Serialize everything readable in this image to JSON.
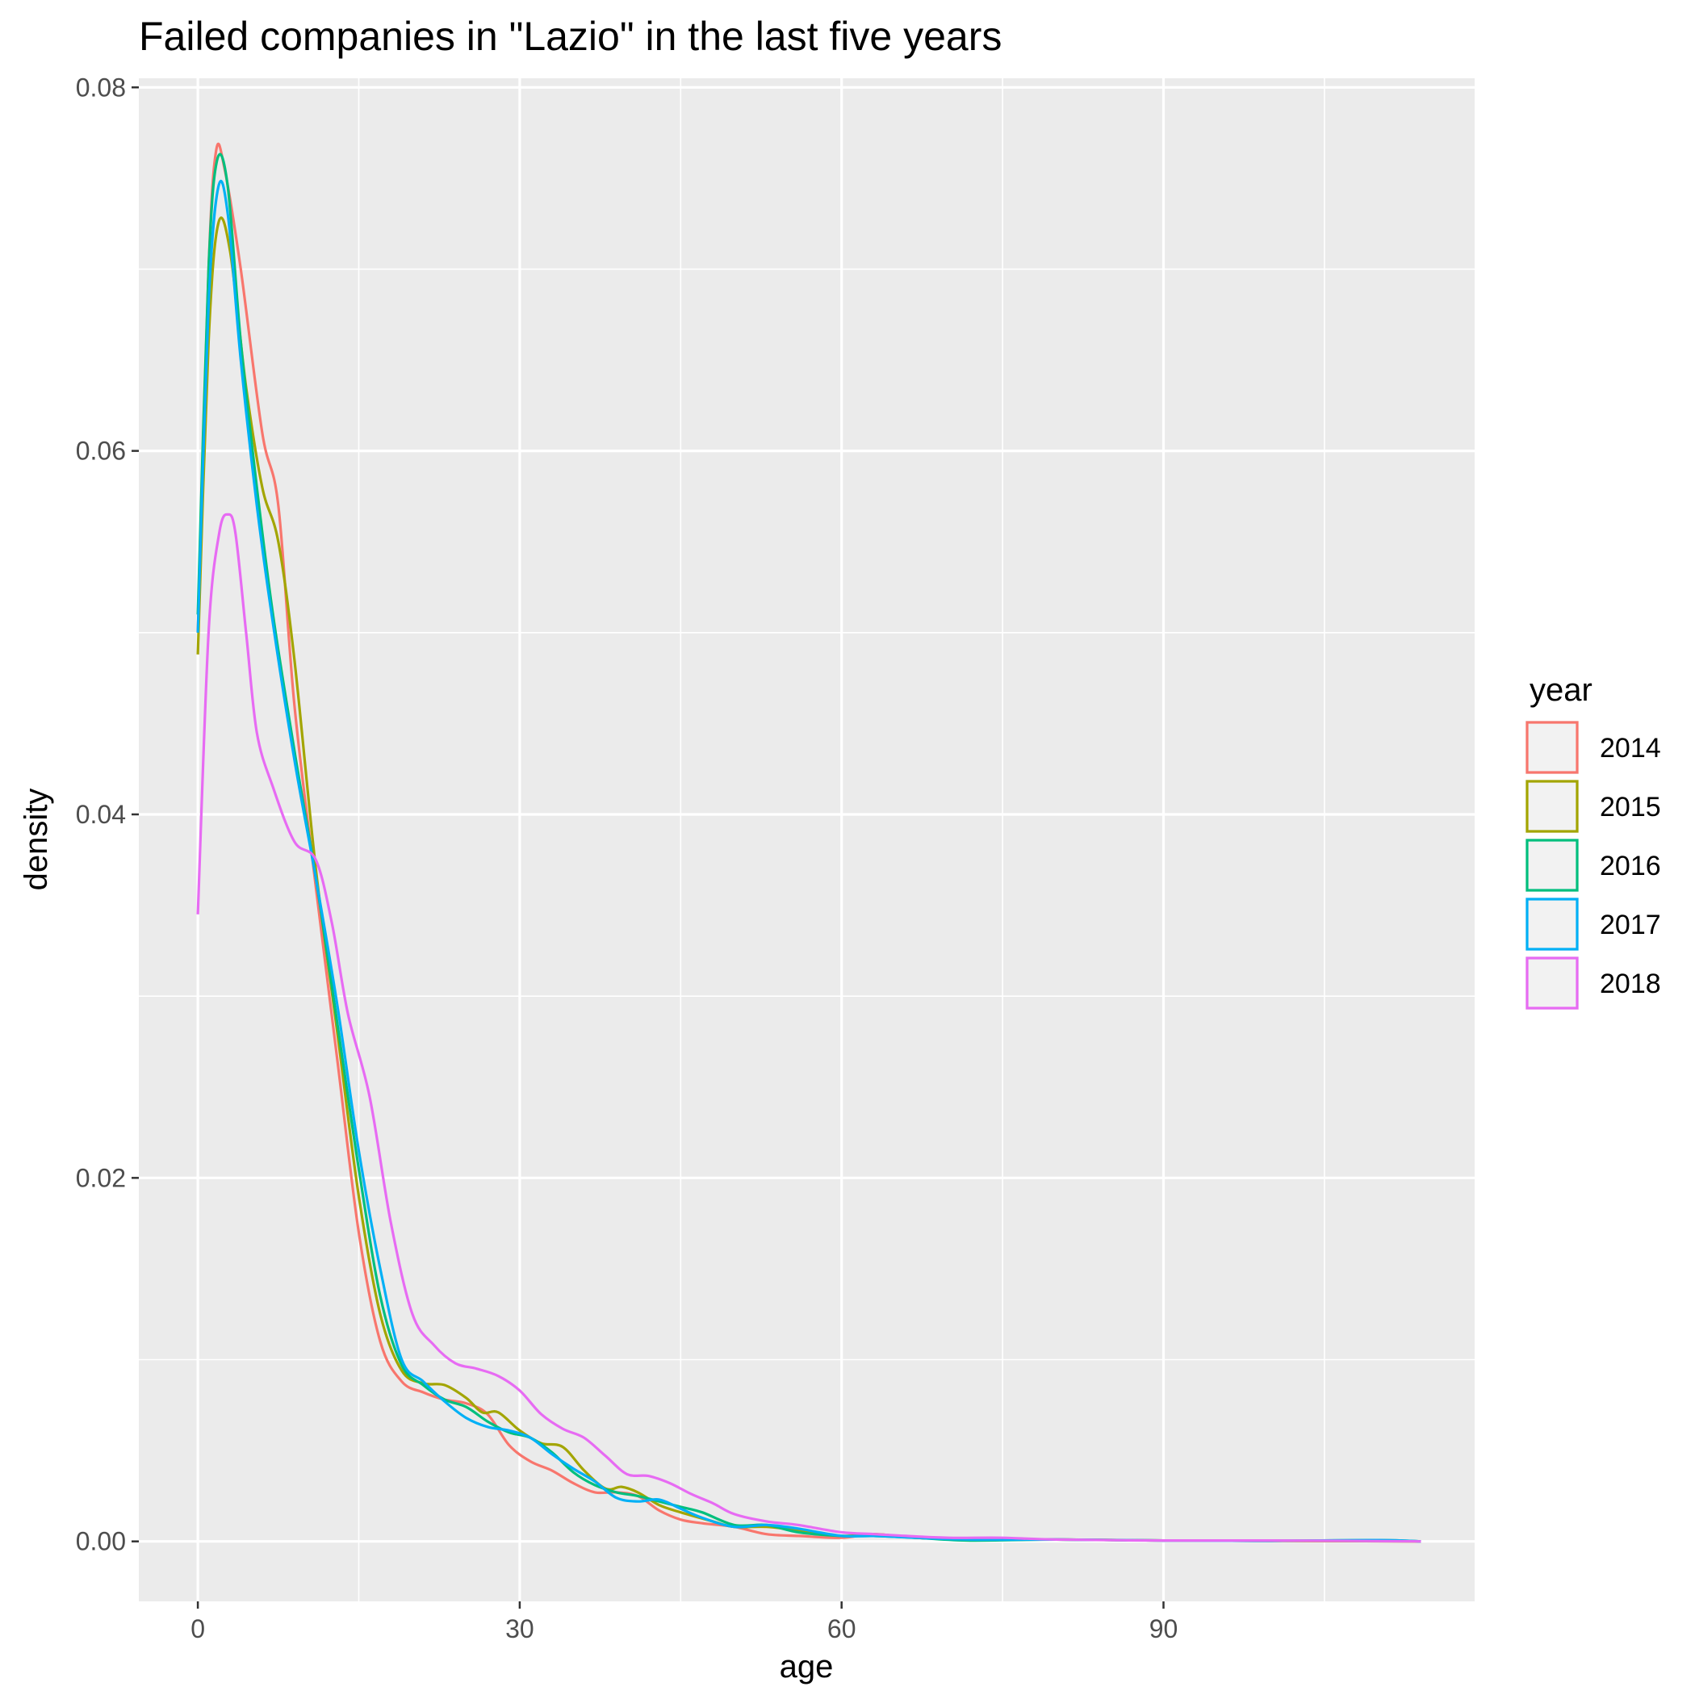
{
  "chart_data": {
    "type": "line",
    "title": "Failed companies in \"Lazio\" in the last five years",
    "xlabel": "age",
    "ylabel": "density",
    "xlim": [
      -5.5,
      119
    ],
    "ylim": [
      -0.0033,
      0.0805
    ],
    "x_ticks": [
      0,
      30,
      60,
      90
    ],
    "x_tick_labels": [
      "0",
      "30",
      "60",
      "90"
    ],
    "x_minor_ticks": [
      15,
      45,
      75,
      105
    ],
    "y_ticks": [
      0,
      0.02,
      0.04,
      0.06,
      0.08
    ],
    "y_tick_labels": [
      "0.00",
      "0.02",
      "0.04",
      "0.06",
      "0.08"
    ],
    "y_minor_ticks": [
      0.01,
      0.03,
      0.05,
      0.07
    ],
    "grid": true,
    "background": "#ebebeb",
    "legend": {
      "title": "year",
      "position": "right"
    },
    "series": [
      {
        "name": "2014",
        "color": "#f8766d",
        "points": [
          [
            0,
            0.05
          ],
          [
            1,
            0.07
          ],
          [
            1.7,
            0.0765
          ],
          [
            2.5,
            0.0755
          ],
          [
            4,
            0.07
          ],
          [
            6,
            0.061
          ],
          [
            7.5,
            0.057
          ],
          [
            9,
            0.046
          ],
          [
            11,
            0.036
          ],
          [
            13,
            0.0265
          ],
          [
            15,
            0.017
          ],
          [
            17,
            0.011
          ],
          [
            19,
            0.0088
          ],
          [
            21,
            0.0082
          ],
          [
            23,
            0.0078
          ],
          [
            25,
            0.0076
          ],
          [
            27,
            0.007
          ],
          [
            29,
            0.0053
          ],
          [
            31,
            0.0044
          ],
          [
            33,
            0.0039
          ],
          [
            35,
            0.0032
          ],
          [
            37,
            0.0027
          ],
          [
            39,
            0.0027
          ],
          [
            41,
            0.0025
          ],
          [
            43,
            0.0017
          ],
          [
            45,
            0.0012
          ],
          [
            47,
            0.001
          ],
          [
            50,
            0.0008
          ],
          [
            53,
            0.0004
          ],
          [
            56,
            0.0003
          ],
          [
            60,
            0.0002
          ],
          [
            63,
            0.0004
          ],
          [
            67,
            0.0002
          ],
          [
            72,
            0.0001
          ],
          [
            80,
            0.0001
          ],
          [
            90,
            5e-05
          ],
          [
            100,
            3e-05
          ],
          [
            114,
            0.0
          ]
        ]
      },
      {
        "name": "2015",
        "color": "#a3a500",
        "points": [
          [
            0,
            0.0488
          ],
          [
            1,
            0.066
          ],
          [
            1.9,
            0.0725
          ],
          [
            3,
            0.071
          ],
          [
            4.5,
            0.0635
          ],
          [
            6,
            0.058
          ],
          [
            7.5,
            0.055
          ],
          [
            9,
            0.0485
          ],
          [
            11,
            0.037
          ],
          [
            13,
            0.028
          ],
          [
            15,
            0.019
          ],
          [
            17,
            0.0125
          ],
          [
            19,
            0.0094
          ],
          [
            21,
            0.0087
          ],
          [
            23,
            0.0086
          ],
          [
            25,
            0.0079
          ],
          [
            26.5,
            0.0071
          ],
          [
            28,
            0.0071
          ],
          [
            30,
            0.0061
          ],
          [
            32,
            0.0054
          ],
          [
            34,
            0.0052
          ],
          [
            36,
            0.0039
          ],
          [
            38,
            0.0029
          ],
          [
            39.5,
            0.003
          ],
          [
            41,
            0.0027
          ],
          [
            43,
            0.002
          ],
          [
            45,
            0.0016
          ],
          [
            48,
            0.0011
          ],
          [
            50,
            0.0008
          ],
          [
            53,
            0.0008
          ],
          [
            56,
            0.0006
          ],
          [
            60,
            0.0003
          ],
          [
            63,
            0.0004
          ],
          [
            67,
            0.0002
          ],
          [
            72,
            0.0001
          ],
          [
            80,
            0.0001
          ],
          [
            90,
            5e-05
          ],
          [
            100,
            3e-05
          ],
          [
            114,
            0.0
          ]
        ]
      },
      {
        "name": "2016",
        "color": "#00bf7d",
        "points": [
          [
            0,
            0.051
          ],
          [
            1,
            0.07
          ],
          [
            1.8,
            0.076
          ],
          [
            2.8,
            0.0745
          ],
          [
            4,
            0.066
          ],
          [
            5.5,
            0.058
          ],
          [
            7,
            0.051
          ],
          [
            9,
            0.0435
          ],
          [
            11,
            0.0365
          ],
          [
            13,
            0.0285
          ],
          [
            15,
            0.0205
          ],
          [
            17,
            0.0135
          ],
          [
            19,
            0.0097
          ],
          [
            21,
            0.0086
          ],
          [
            23,
            0.0078
          ],
          [
            25,
            0.0074
          ],
          [
            27,
            0.0066
          ],
          [
            29,
            0.006
          ],
          [
            31,
            0.0057
          ],
          [
            33,
            0.0049
          ],
          [
            35,
            0.0038
          ],
          [
            37,
            0.0031
          ],
          [
            39,
            0.0027
          ],
          [
            41,
            0.0025
          ],
          [
            43,
            0.0022
          ],
          [
            45,
            0.0019
          ],
          [
            47,
            0.0016
          ],
          [
            50,
            0.0009
          ],
          [
            53,
            0.0009
          ],
          [
            56,
            0.0005
          ],
          [
            60,
            0.0003
          ],
          [
            63,
            0.0003
          ],
          [
            67,
            0.0002
          ],
          [
            72,
            5e-05
          ],
          [
            80,
            0.0001
          ],
          [
            90,
            5e-05
          ],
          [
            100,
            3e-05
          ],
          [
            110,
            7e-05
          ],
          [
            114,
            0.0
          ]
        ]
      },
      {
        "name": "2017",
        "color": "#00b0f6",
        "points": [
          [
            0,
            0.05
          ],
          [
            1,
            0.068
          ],
          [
            1.9,
            0.0745
          ],
          [
            2.8,
            0.073
          ],
          [
            4,
            0.065
          ],
          [
            5.5,
            0.057
          ],
          [
            7,
            0.0505
          ],
          [
            9,
            0.043
          ],
          [
            11,
            0.0365
          ],
          [
            13,
            0.0295
          ],
          [
            15,
            0.0215
          ],
          [
            17,
            0.015
          ],
          [
            19,
            0.01
          ],
          [
            21,
            0.0088
          ],
          [
            23,
            0.0077
          ],
          [
            25,
            0.0068
          ],
          [
            27,
            0.0063
          ],
          [
            29,
            0.0061
          ],
          [
            31,
            0.0057
          ],
          [
            33,
            0.0048
          ],
          [
            35,
            0.004
          ],
          [
            37,
            0.0033
          ],
          [
            39,
            0.0024
          ],
          [
            41,
            0.0022
          ],
          [
            43,
            0.0023
          ],
          [
            45,
            0.0018
          ],
          [
            47,
            0.0013
          ],
          [
            50,
            0.0008
          ],
          [
            53,
            0.0009
          ],
          [
            56,
            0.0007
          ],
          [
            60,
            0.0003
          ],
          [
            63,
            0.0003
          ],
          [
            67,
            0.0002
          ],
          [
            72,
            0.0001
          ],
          [
            80,
            0.0001
          ],
          [
            90,
            5e-05
          ],
          [
            100,
            3e-05
          ],
          [
            110,
            7e-05
          ],
          [
            114,
            0.0
          ]
        ]
      },
      {
        "name": "2018",
        "color": "#e76bf3",
        "points": [
          [
            0,
            0.0345
          ],
          [
            1,
            0.05
          ],
          [
            2,
            0.0555
          ],
          [
            2.8,
            0.0565
          ],
          [
            3.5,
            0.0555
          ],
          [
            4.5,
            0.05
          ],
          [
            5.5,
            0.0445
          ],
          [
            7,
            0.0415
          ],
          [
            9,
            0.0385
          ],
          [
            11,
            0.0375
          ],
          [
            12.5,
            0.034
          ],
          [
            14,
            0.029
          ],
          [
            16,
            0.0245
          ],
          [
            18,
            0.0175
          ],
          [
            20,
            0.0125
          ],
          [
            22,
            0.0108
          ],
          [
            24,
            0.0098
          ],
          [
            26,
            0.0095
          ],
          [
            28,
            0.0091
          ],
          [
            30,
            0.0083
          ],
          [
            32,
            0.007
          ],
          [
            34,
            0.0062
          ],
          [
            36,
            0.0057
          ],
          [
            38,
            0.0047
          ],
          [
            40,
            0.0037
          ],
          [
            42,
            0.0036
          ],
          [
            44,
            0.0032
          ],
          [
            46,
            0.0026
          ],
          [
            48,
            0.0021
          ],
          [
            50,
            0.0015
          ],
          [
            53,
            0.0011
          ],
          [
            56,
            0.0009
          ],
          [
            60,
            0.0005
          ],
          [
            63,
            0.0004
          ],
          [
            66,
            0.0003
          ],
          [
            70,
            0.0002
          ],
          [
            75,
            0.0002
          ],
          [
            80,
            0.0001
          ],
          [
            90,
            5e-05
          ],
          [
            100,
            5e-05
          ],
          [
            114,
            0.0
          ]
        ]
      }
    ]
  }
}
